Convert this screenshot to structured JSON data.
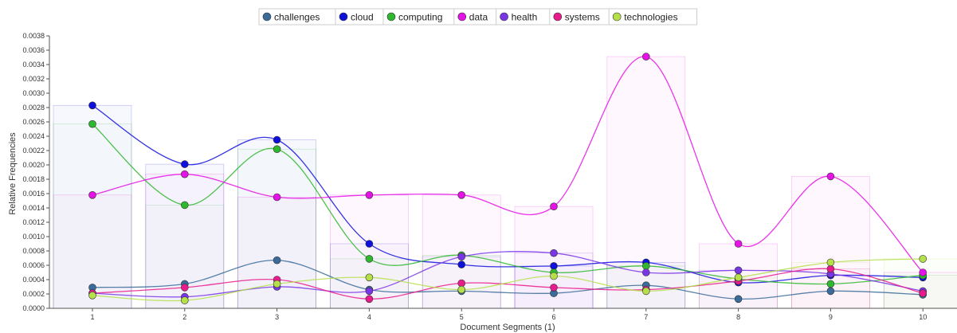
{
  "chart_data": {
    "type": "line",
    "title": "",
    "xlabel": "Document Segments (1)",
    "ylabel": "Relative Frequencies",
    "x": [
      1,
      2,
      3,
      4,
      5,
      6,
      7,
      8,
      9,
      10
    ],
    "ylim": [
      0,
      0.0038
    ],
    "yticks": [
      "0.0000",
      "0.0002",
      "0.0004",
      "0.0006",
      "0.0008",
      "0.0010",
      "0.0012",
      "0.0014",
      "0.0016",
      "0.0018",
      "0.0020",
      "0.0022",
      "0.0024",
      "0.0026",
      "0.0028",
      "0.0030",
      "0.0032",
      "0.0034",
      "0.0036",
      "0.0038"
    ],
    "xticks": [
      "1",
      "2",
      "3",
      "4",
      "5",
      "6",
      "7",
      "8",
      "9",
      "10"
    ],
    "legend_position": "top-center",
    "series": [
      {
        "name": "challenges",
        "color": "#3a6b9a",
        "values": [
          0.00029,
          0.00034,
          0.00067,
          0.00026,
          0.00024,
          0.00021,
          0.00032,
          0.00013,
          0.00024,
          0.00019
        ]
      },
      {
        "name": "cloud",
        "color": "#1010dd",
        "values": [
          0.00283,
          0.00201,
          0.00235,
          0.0009,
          0.00061,
          0.00059,
          0.00064,
          0.00036,
          0.00046,
          0.00043
        ]
      },
      {
        "name": "computing",
        "color": "#2eb82e",
        "values": [
          0.00257,
          0.00144,
          0.00222,
          0.00069,
          0.00074,
          0.0005,
          0.00059,
          0.00041,
          0.00034,
          0.00046
        ]
      },
      {
        "name": "data",
        "color": "#e512e5",
        "values": [
          0.00158,
          0.00187,
          0.00155,
          0.00158,
          0.00158,
          0.00142,
          0.00351,
          0.0009,
          0.00184,
          0.0005
        ]
      },
      {
        "name": "health",
        "color": "#7a35e6",
        "values": [
          0.00021,
          0.00016,
          0.0003,
          0.00024,
          0.00072,
          0.00077,
          0.0005,
          0.00053,
          0.00048,
          0.00024
        ]
      },
      {
        "name": "systems",
        "color": "#e81a8c",
        "values": [
          0.00021,
          0.00029,
          0.0004,
          0.00013,
          0.00035,
          0.00029,
          0.00026,
          0.00038,
          0.00055,
          0.00021
        ]
      },
      {
        "name": "technologies",
        "color": "#b5e04a",
        "values": [
          0.00018,
          0.00011,
          0.00034,
          0.00043,
          0.00026,
          0.00045,
          0.00024,
          0.00043,
          0.00064,
          0.00069
        ]
      }
    ]
  }
}
